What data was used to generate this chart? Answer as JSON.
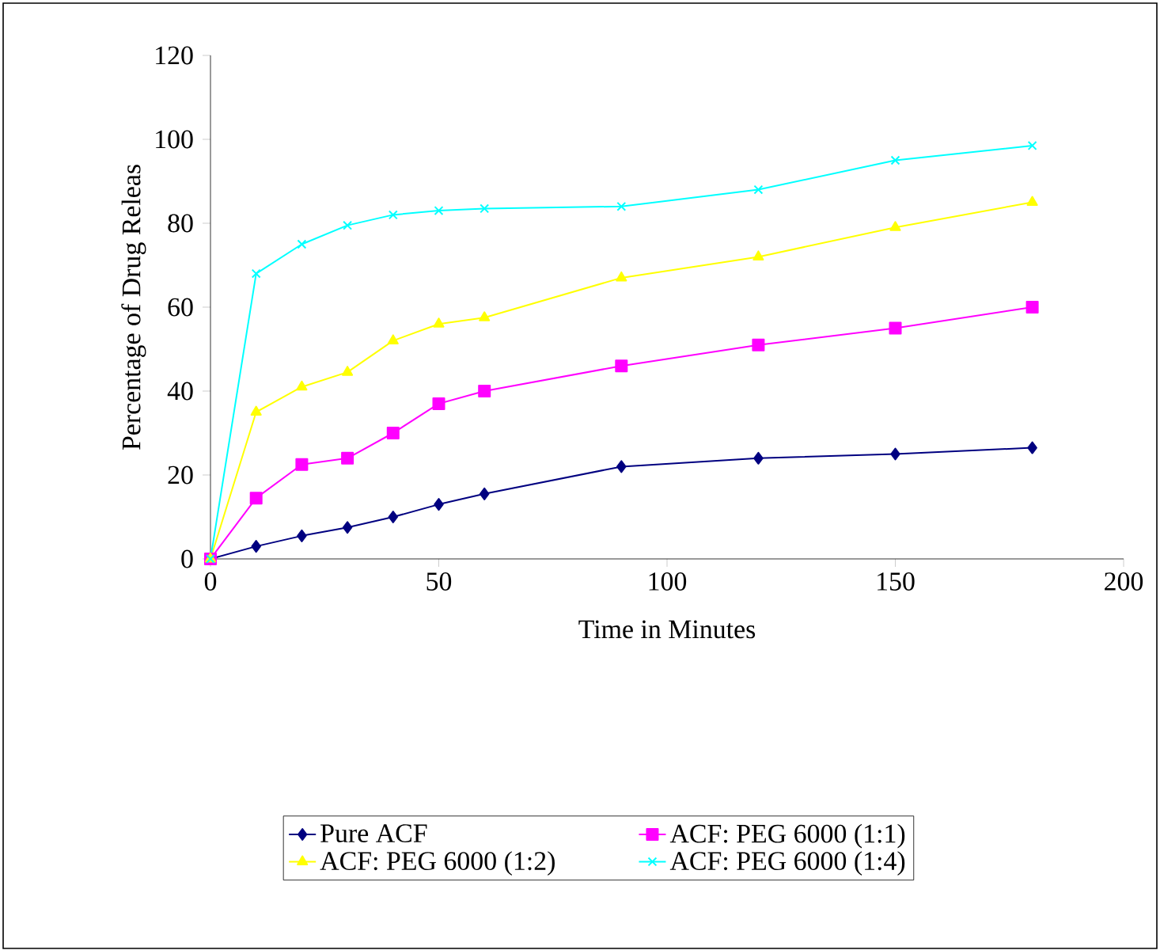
{
  "chart_data": {
    "type": "line",
    "xlabel": "Time in Minutes",
    "ylabel": "Percentage of Drug Releas",
    "x": [
      0,
      10,
      20,
      30,
      40,
      50,
      60,
      90,
      120,
      150,
      180
    ],
    "series": [
      {
        "name": "Pure ACF",
        "color": "#000080",
        "marker": "diamond",
        "values": [
          0,
          3,
          5.5,
          7.5,
          10,
          13,
          15.5,
          22,
          24,
          25,
          26.5
        ]
      },
      {
        "name": "ACF: PEG 6000 (1:1)",
        "color": "#ff00ff",
        "marker": "square",
        "values": [
          0,
          14.5,
          22.5,
          24,
          30,
          37,
          40,
          46,
          51,
          55,
          60
        ]
      },
      {
        "name": "ACF: PEG 6000 (1:2)",
        "color": "#ffff00",
        "marker": "triangle",
        "values": [
          0,
          35,
          41,
          44.5,
          52,
          56,
          57.5,
          67,
          72,
          79,
          85
        ]
      },
      {
        "name": "ACF: PEG 6000 (1:4)",
        "color": "#00ffff",
        "marker": "cross",
        "values": [
          0,
          68,
          75,
          79.5,
          82,
          83,
          83.5,
          84,
          88,
          95,
          98.5
        ]
      }
    ],
    "xlim": [
      0,
      200
    ],
    "xticks": [
      0,
      50,
      100,
      150,
      200
    ],
    "ylim": [
      0,
      120
    ],
    "yticks": [
      0,
      20,
      40,
      60,
      80,
      100,
      120
    ],
    "grid": false,
    "legend": "bottom",
    "line_style": "solid"
  }
}
